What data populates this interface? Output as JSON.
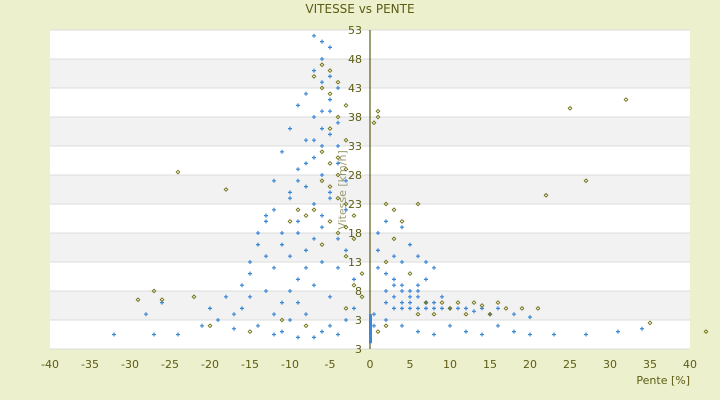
{
  "chart_data": {
    "type": "scatter",
    "title": "VITESSE vs PENTE",
    "xlabel": "Pente [%]",
    "ylabel": "Vitesse [km/h]",
    "xlim": [
      -40,
      40
    ],
    "ylim": [
      -2,
      53
    ],
    "x_ticks": [
      "-40",
      "-35",
      "-30",
      "-25",
      "-20",
      "-15",
      "-10",
      "-5",
      "0",
      "5",
      "10",
      "15",
      "20",
      "25",
      "30",
      "35",
      "40"
    ],
    "y_ticks": [
      "53",
      "48",
      "43",
      "38",
      "33",
      "28",
      "23",
      "18",
      "13",
      "8",
      "3",
      "3"
    ],
    "grid": true,
    "background_bands": "alternating white / light gray",
    "colors": {
      "background": "#ecf0cd",
      "series_blue": "#3a87d8",
      "series_olive": "#6f6f10",
      "axis": "#5c5c14"
    },
    "series": [
      {
        "color": "#3a87d8",
        "marker": "plus",
        "points": [
          [
            -7,
            52
          ],
          [
            -6,
            51
          ],
          [
            -5,
            50
          ],
          [
            -6,
            48
          ],
          [
            -7,
            46
          ],
          [
            -5,
            45
          ],
          [
            -6,
            44
          ],
          [
            -4,
            43
          ],
          [
            -8,
            42
          ],
          [
            -5,
            41
          ],
          [
            -9,
            40
          ],
          [
            -6,
            39
          ],
          [
            -7,
            38
          ],
          [
            -4,
            37
          ],
          [
            -10,
            36
          ],
          [
            -5,
            35
          ],
          [
            -8,
            34
          ],
          [
            -6,
            33
          ],
          [
            -11,
            32
          ],
          [
            -7,
            31
          ],
          [
            -4,
            30
          ],
          [
            -9,
            29
          ],
          [
            -6,
            28
          ],
          [
            -12,
            27
          ],
          [
            -8,
            26
          ],
          [
            -5,
            25
          ],
          [
            -10,
            24
          ],
          [
            -7,
            23
          ],
          [
            -3,
            22
          ],
          [
            -13,
            21
          ],
          [
            -9,
            20
          ],
          [
            -6,
            19
          ],
          [
            -11,
            18
          ],
          [
            -4,
            17
          ],
          [
            -14,
            16
          ],
          [
            -8,
            15
          ],
          [
            -10,
            14
          ],
          [
            -6,
            13
          ],
          [
            -12,
            12
          ],
          [
            -15,
            11
          ],
          [
            -9,
            10
          ],
          [
            -7,
            9
          ],
          [
            -13,
            8
          ],
          [
            -5,
            7
          ],
          [
            -11,
            6
          ],
          [
            -16,
            5
          ],
          [
            -8,
            4
          ],
          [
            -10,
            3
          ],
          [
            -14,
            2
          ],
          [
            -6,
            1
          ],
          [
            -12,
            0.5
          ],
          [
            -9,
            0
          ],
          [
            -4,
            0.5
          ],
          [
            -17,
            1.5
          ],
          [
            -19,
            3
          ],
          [
            -20,
            5
          ],
          [
            -18,
            7
          ],
          [
            -16,
            9
          ],
          [
            -15,
            13
          ],
          [
            -14,
            18
          ],
          [
            -13,
            20
          ],
          [
            -12,
            22
          ],
          [
            -10,
            25
          ],
          [
            -9,
            27
          ],
          [
            -8,
            30
          ],
          [
            -7,
            34
          ],
          [
            -6,
            36
          ],
          [
            -5,
            39
          ],
          [
            -4,
            33
          ],
          [
            -3,
            27
          ],
          [
            -3,
            15
          ],
          [
            -2,
            10
          ],
          [
            -2,
            5
          ],
          [
            -3,
            3
          ],
          [
            -11,
            1
          ],
          [
            -7,
            0
          ],
          [
            -5,
            2
          ],
          [
            -9,
            6
          ],
          [
            -8,
            12
          ],
          [
            -7,
            17
          ],
          [
            -6,
            21
          ],
          [
            -5,
            24
          ],
          [
            -4,
            12
          ],
          [
            -10,
            8
          ],
          [
            -12,
            4
          ],
          [
            -13,
            14
          ],
          [
            -11,
            16
          ],
          [
            -9,
            18
          ],
          [
            -15,
            7
          ],
          [
            -17,
            4
          ],
          [
            -21,
            2
          ],
          [
            -24,
            0.5
          ],
          [
            -27,
            0.5
          ],
          [
            -32,
            0.5
          ],
          [
            -28,
            4
          ],
          [
            -26,
            6
          ],
          [
            1,
            12
          ],
          [
            2,
            11
          ],
          [
            3,
            10
          ],
          [
            4,
            9
          ],
          [
            5,
            8
          ],
          [
            6,
            9
          ],
          [
            7,
            10
          ],
          [
            2,
            8
          ],
          [
            3,
            7
          ],
          [
            4,
            6
          ],
          [
            5,
            6
          ],
          [
            6,
            7
          ],
          [
            7,
            6
          ],
          [
            8,
            6
          ],
          [
            9,
            7
          ],
          [
            3,
            9
          ],
          [
            4,
            8
          ],
          [
            5,
            7
          ],
          [
            6,
            8
          ],
          [
            2,
            6
          ],
          [
            3,
            5
          ],
          [
            4,
            5
          ],
          [
            5,
            5
          ],
          [
            6,
            5
          ],
          [
            7,
            5
          ],
          [
            8,
            5
          ],
          [
            9,
            5
          ],
          [
            10,
            5
          ],
          [
            11,
            5
          ],
          [
            12,
            5
          ],
          [
            13,
            4.5
          ],
          [
            14,
            5
          ],
          [
            15,
            4
          ],
          [
            16,
            5
          ],
          [
            18,
            4
          ],
          [
            20,
            3.5
          ],
          [
            4,
            13
          ],
          [
            6,
            14
          ],
          [
            8,
            12
          ],
          [
            3,
            14
          ],
          [
            1,
            15
          ],
          [
            5,
            16
          ],
          [
            7,
            13
          ],
          [
            2,
            3
          ],
          [
            4,
            2
          ],
          [
            6,
            1
          ],
          [
            8,
            0.5
          ],
          [
            10,
            2
          ],
          [
            12,
            1
          ],
          [
            14,
            0.5
          ],
          [
            16,
            2
          ],
          [
            18,
            1
          ],
          [
            20,
            0.5
          ],
          [
            23,
            0.5
          ],
          [
            27,
            0.5
          ],
          [
            31,
            1
          ],
          [
            34,
            1.5
          ],
          [
            1,
            18
          ],
          [
            2,
            20
          ],
          [
            4,
            19
          ],
          [
            0.5,
            2
          ],
          [
            0.5,
            4
          ]
        ]
      },
      {
        "color": "#6f6f10",
        "marker": "diamond",
        "points": [
          [
            -6,
            47
          ],
          [
            -5,
            46
          ],
          [
            -7,
            45
          ],
          [
            -4,
            44
          ],
          [
            -6,
            43
          ],
          [
            -5,
            42
          ],
          [
            -3,
            40
          ],
          [
            -4,
            38
          ],
          [
            -5,
            36
          ],
          [
            -3,
            34
          ],
          [
            -6,
            32
          ],
          [
            -4,
            31
          ],
          [
            -5,
            30
          ],
          [
            -3,
            29
          ],
          [
            -4,
            28
          ],
          [
            -6,
            27
          ],
          [
            -5,
            26
          ],
          [
            -4,
            24
          ],
          [
            -3,
            23
          ],
          [
            -7,
            22
          ],
          [
            -2,
            21
          ],
          [
            -5,
            20
          ],
          [
            -3,
            19
          ],
          [
            -4,
            18
          ],
          [
            -2,
            17
          ],
          [
            -6,
            16
          ],
          [
            -3,
            14
          ],
          [
            -1,
            11
          ],
          [
            -2,
            9
          ],
          [
            -1,
            7
          ],
          [
            -3,
            5
          ],
          [
            -8,
            21
          ],
          [
            -9,
            22
          ],
          [
            -10,
            20
          ],
          [
            1,
            38
          ],
          [
            1,
            39
          ],
          [
            0.5,
            37
          ],
          [
            2,
            23
          ],
          [
            3,
            22
          ],
          [
            6,
            23
          ],
          [
            4,
            20
          ],
          [
            3,
            17
          ],
          [
            2,
            13
          ],
          [
            5,
            11
          ],
          [
            7,
            6
          ],
          [
            9,
            6
          ],
          [
            11,
            6
          ],
          [
            13,
            6
          ],
          [
            14,
            5.5
          ],
          [
            16,
            6
          ],
          [
            17,
            5
          ],
          [
            19,
            5
          ],
          [
            21,
            5
          ],
          [
            15,
            4
          ],
          [
            12,
            4
          ],
          [
            10,
            5
          ],
          [
            8,
            4
          ],
          [
            6,
            4
          ],
          [
            32,
            41
          ],
          [
            25,
            39.5
          ],
          [
            27,
            27
          ],
          [
            22,
            24.5
          ],
          [
            -24,
            28.5
          ],
          [
            -18,
            25.5
          ],
          [
            42,
            1
          ],
          [
            35,
            2.5
          ],
          [
            -29,
            6.5
          ],
          [
            -26,
            6.5
          ],
          [
            -22,
            7
          ],
          [
            -27,
            8
          ],
          [
            -20,
            2
          ],
          [
            -15,
            1
          ],
          [
            -11,
            3
          ],
          [
            -8,
            2
          ],
          [
            1,
            1
          ],
          [
            2,
            2
          ]
        ]
      }
    ]
  }
}
